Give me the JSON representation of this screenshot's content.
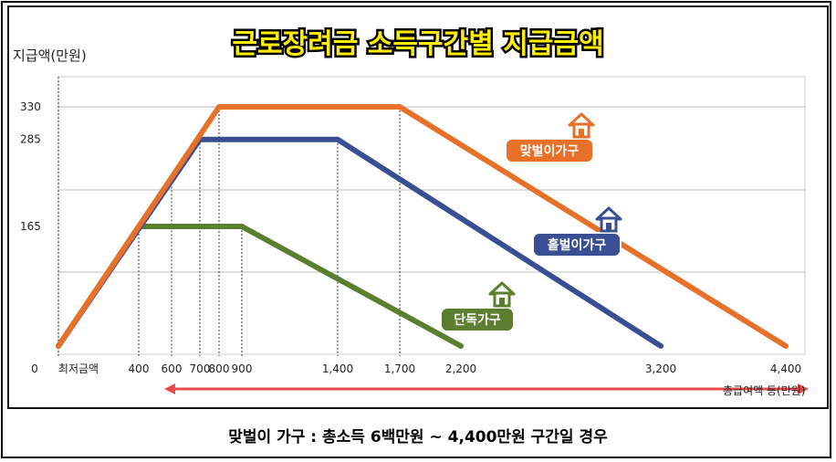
{
  "chart_data": {
    "type": "line",
    "title": "근로장려금 소득구간별 지급금액",
    "ylabel": "지급액(만원)",
    "xlabel": "총급여액 등(만원)",
    "zero_label": "0",
    "min_income_label": "최저금액",
    "x_ticks": [
      400,
      600,
      700,
      800,
      900,
      1400,
      1700,
      2200,
      3200,
      4400
    ],
    "x_tick_labels": [
      "400",
      "600",
      "700",
      "800",
      "900",
      "1,400",
      "1,700",
      "2,200",
      "3,200",
      "4,400"
    ],
    "y_ticks": [
      165,
      285,
      330
    ],
    "ylim": [
      0,
      330
    ],
    "series": [
      {
        "name": "맞벌이가구",
        "color": "#e8712a",
        "points": [
          [
            0,
            0
          ],
          [
            800,
            330
          ],
          [
            1700,
            330
          ],
          [
            4400,
            0
          ]
        ]
      },
      {
        "name": "홑벌이가구",
        "color": "#3a4e94",
        "points": [
          [
            0,
            0
          ],
          [
            700,
            285
          ],
          [
            1400,
            285
          ],
          [
            3200,
            0
          ]
        ]
      },
      {
        "name": "단독가구",
        "color": "#5b7f2e",
        "points": [
          [
            0,
            0
          ],
          [
            400,
            165
          ],
          [
            900,
            165
          ],
          [
            2200,
            0
          ]
        ]
      }
    ]
  },
  "caption": "맞벌이 가구 : 총소득 6백만원 ~ 4,400만원 구간일 경우",
  "colors": {
    "arrow": "#e84a4a",
    "grid": "#bdbdbd",
    "plot_bg": "#ffffff"
  },
  "icons": [
    "house-icon"
  ]
}
